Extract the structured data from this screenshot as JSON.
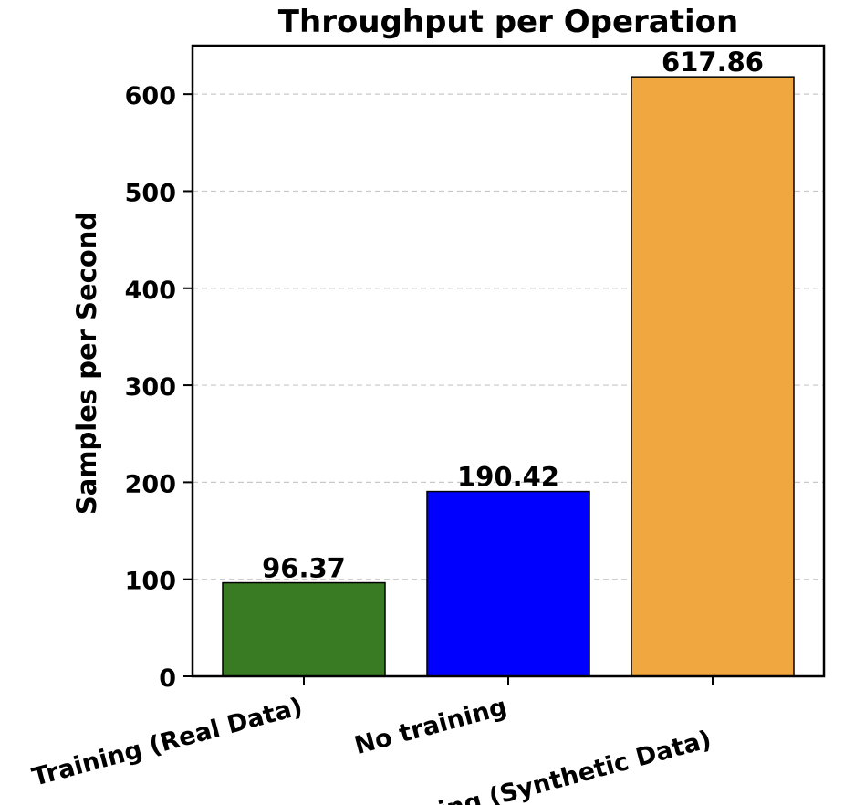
{
  "chart_data": {
    "type": "bar",
    "title": "Throughput per Operation",
    "xlabel": "",
    "ylabel": "Samples per Second",
    "categories": [
      "Training (Real Data)",
      "No training",
      "Training (Synthetic Data)"
    ],
    "values": [
      96.37,
      190.42,
      617.86
    ],
    "value_labels": [
      "96.37",
      "190.42",
      "617.86"
    ],
    "colors": [
      "#387B22",
      "#0000FF",
      "#F0A73F"
    ],
    "ylim": [
      0,
      650
    ],
    "yticks": [
      0,
      100,
      200,
      300,
      400,
      500,
      600
    ],
    "grid": "y-dashed",
    "legend": "none"
  }
}
